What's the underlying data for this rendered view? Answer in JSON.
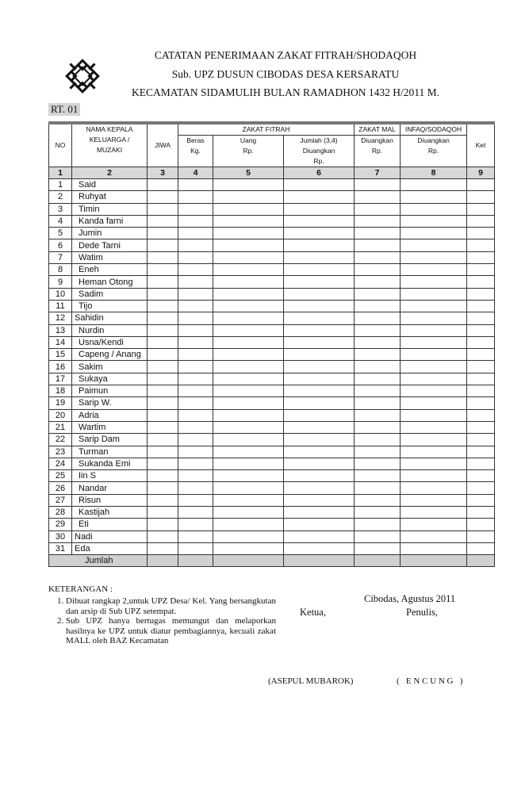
{
  "header": {
    "logo": "islamic-geometric-logo",
    "line1": "CATATAN PENERIMAAN ZAKAT FITRAH/SHODAQOH",
    "line2": "Sub. UPZ  DUSUN CIBODAS DESA KERSARATU",
    "line3": "KECAMATAN SIDAMULIH BULAN RAMADHON 1432 H/2011 M.",
    "rt": "RT.  01"
  },
  "table": {
    "h_no": "NO",
    "h_name": [
      "NAMA KEPALA",
      "KELUARGA /",
      "MUZAKI"
    ],
    "h_jiwa": "JIWA",
    "h_zakat_fitrah": "ZAKAT FITRAH",
    "h_zakat_mal": "ZAKAT MAL",
    "h_infaq": "INFAQ/SODAQOH",
    "h_ket": "Ket",
    "h_beras": [
      "Beras",
      "Kg."
    ],
    "h_uang": [
      "Uang",
      "Rp."
    ],
    "h_jumlah": [
      "Jumlah (3,4)",
      "Diuangkan",
      "Rp."
    ],
    "h_mal_sub": [
      "Diuangkan",
      "Rp."
    ],
    "h_infaq_sub": [
      "Diuangkan",
      "Rp."
    ],
    "col_numbers": [
      "1",
      "2",
      "3",
      "4",
      "5",
      "6",
      "7",
      "8",
      "9"
    ],
    "rows": [
      "Said",
      "Ruhyat",
      "Timin",
      "Kanda farni",
      "Jumin",
      "Dede Tarni",
      "Watim",
      "Eneh",
      "Heman Otong",
      "Sadim",
      "Tijo",
      "Sahidin",
      "Nurdin",
      "Usna/Kendi",
      "Capeng / Anang",
      "Sakim",
      "Sukaya",
      "Paimun",
      "Sarip W.",
      "Adria",
      "Wartim",
      "Sarip Dam",
      "Turman",
      "Sukanda Emi",
      "Iin S",
      "Nandar",
      "Risun",
      "Kastijah",
      "Eti",
      "Nadi",
      "Eda"
    ],
    "total_label": "Jumlah"
  },
  "footer": {
    "keterangan": "KETERANGAN :",
    "notes": [
      "Dibuat rangkap 2,untuk UPZ Desa/ Kel. Yang bersangkutan dan arsip di Sub UPZ setempat.",
      "Sub UPZ hanya bertugas memungut dan melaporkan hasilnya ke UPZ untuk diatur pembagiannya, kecuali zakat MALL oleh BAZ Kecamatan"
    ],
    "place_date": "Cibodas,    Agustus 2011",
    "ketua": "Ketua,",
    "penulis": "Penulis,",
    "ketua_name": "(ASEPUL MUBAROK)",
    "penulis_name": "(   E N C U N G   )"
  }
}
